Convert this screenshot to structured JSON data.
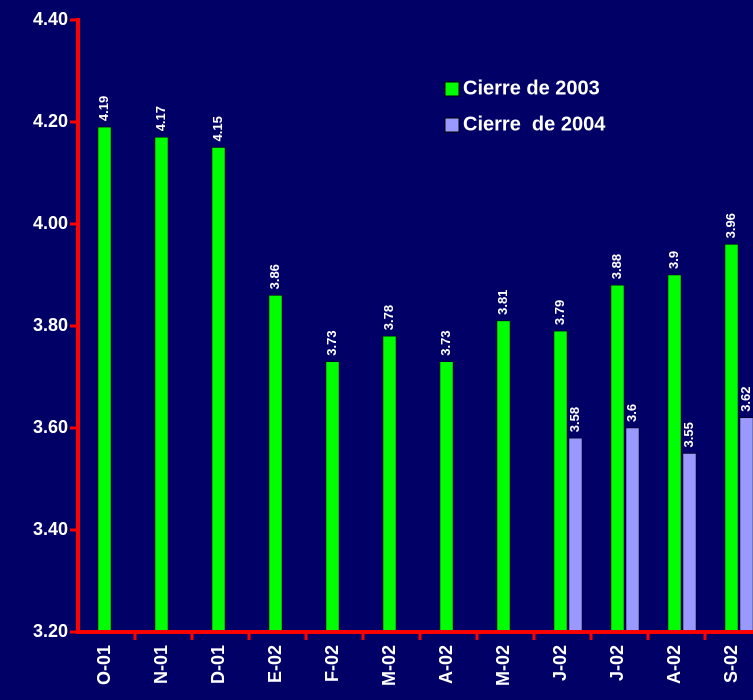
{
  "chart_data": {
    "type": "bar",
    "categories": [
      "O-01",
      "N-01",
      "D-01",
      "E-02",
      "F-02",
      "M-02",
      "A-02",
      "M-02",
      "J-02",
      "J-02",
      "A-02",
      "S-02"
    ],
    "series": [
      {
        "name": "Cierre de 2003",
        "color": "#00ff00",
        "values": [
          4.19,
          4.17,
          4.15,
          3.86,
          3.73,
          3.78,
          3.73,
          3.81,
          3.79,
          3.88,
          3.9,
          3.96
        ]
      },
      {
        "name": "Cierre  de 2004",
        "color": "#9999ff",
        "values": [
          null,
          null,
          null,
          null,
          null,
          null,
          null,
          null,
          3.58,
          3.6,
          3.55,
          3.62
        ]
      }
    ],
    "ylim": [
      3.2,
      4.4
    ],
    "yticks": [
      {
        "value": 3.2,
        "label": "3.20"
      },
      {
        "value": 3.4,
        "label": "3.40"
      },
      {
        "value": 3.6,
        "label": "3.60"
      },
      {
        "value": 3.8,
        "label": "3.80"
      },
      {
        "value": 4.0,
        "label": "4.00"
      },
      {
        "value": 4.2,
        "label": "4.20"
      },
      {
        "value": 4.4,
        "label": "4.40"
      }
    ],
    "legend": "upper right",
    "axis_color": "#ff0000",
    "background": "#000066"
  }
}
